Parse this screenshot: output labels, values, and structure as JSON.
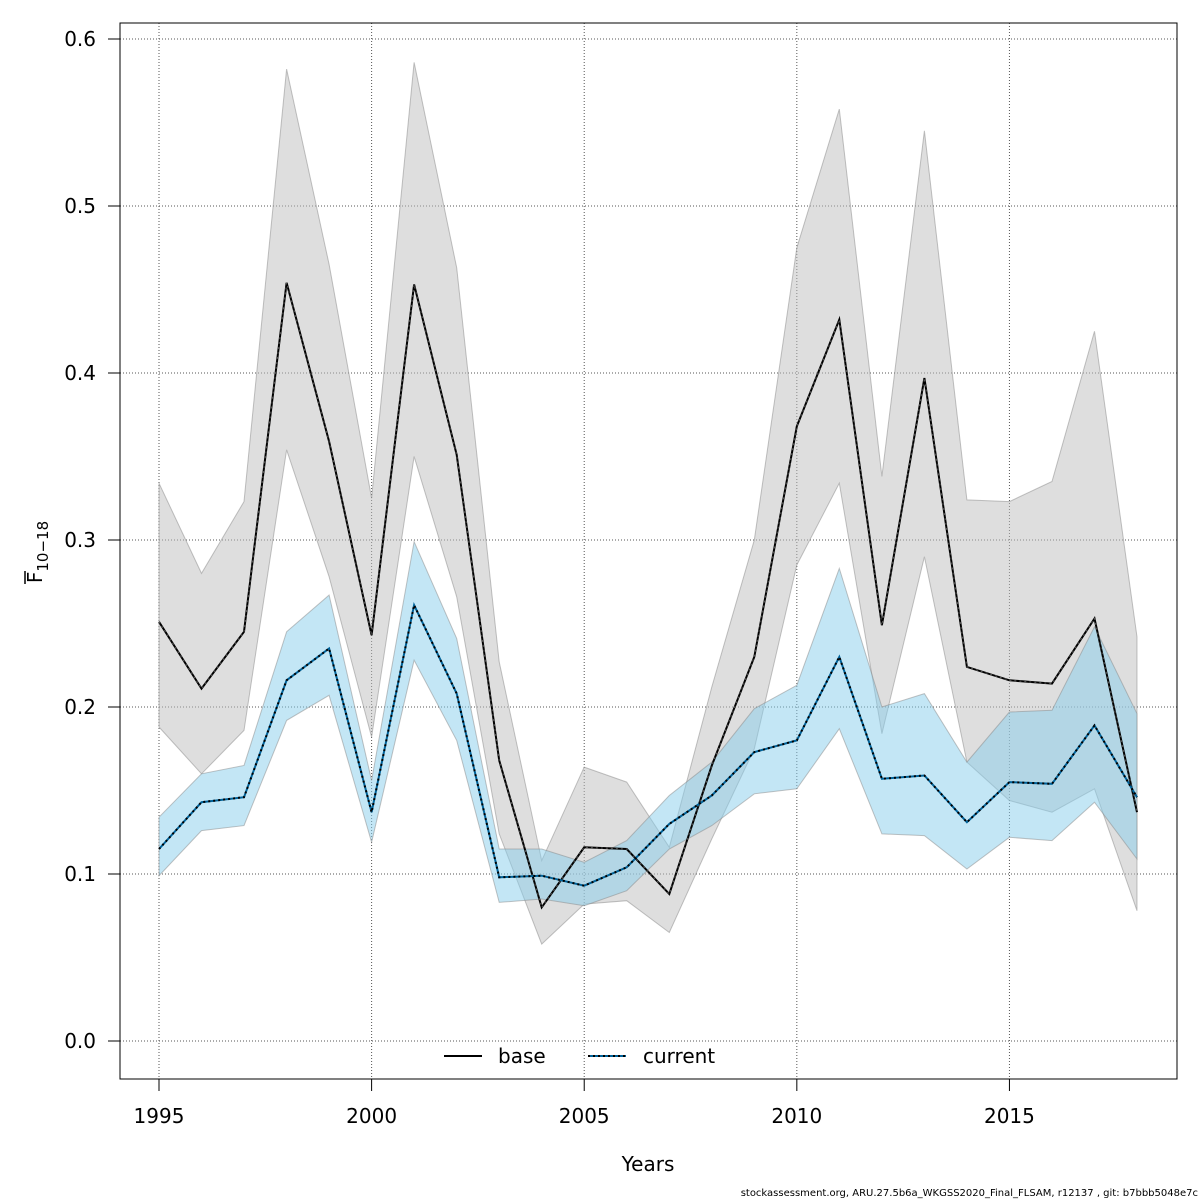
{
  "chart_data": {
    "type": "line",
    "xlabel": "Years",
    "ylabel": {
      "main": "F",
      "sub": "10−18"
    },
    "ylim": [
      0.0,
      0.6
    ],
    "xlim": [
      1995,
      2018
    ],
    "y_ticks": [
      "0.0",
      "0.1",
      "0.2",
      "0.3",
      "0.4",
      "0.5",
      "0.6"
    ],
    "x_ticks": [
      "1995",
      "2000",
      "2005",
      "2010",
      "2015"
    ],
    "grid": true,
    "legend_position": "bottom-center",
    "x": [
      1995,
      1996,
      1997,
      1998,
      1999,
      2000,
      2001,
      2002,
      2003,
      2004,
      2005,
      2006,
      2007,
      2008,
      2009,
      2010,
      2011,
      2012,
      2013,
      2014,
      2015,
      2016,
      2017,
      2018
    ],
    "series": [
      {
        "name": "base",
        "color": "#000000",
        "band_color": "#bebebe",
        "line_style": "solid",
        "values": [
          0.251,
          0.211,
          0.245,
          0.454,
          0.359,
          0.243,
          0.453,
          0.351,
          0.168,
          0.08,
          0.116,
          0.115,
          0.088,
          0.165,
          0.23,
          0.368,
          0.432,
          0.249,
          0.397,
          0.224,
          0.216,
          0.214,
          0.253,
          0.137
        ],
        "upper": [
          0.334,
          0.28,
          0.323,
          0.582,
          0.465,
          0.325,
          0.586,
          0.463,
          0.227,
          0.108,
          0.164,
          0.155,
          0.116,
          0.212,
          0.3,
          0.475,
          0.558,
          0.338,
          0.545,
          0.324,
          0.323,
          0.335,
          0.425,
          0.242
        ],
        "lower": [
          0.188,
          0.16,
          0.186,
          0.354,
          0.278,
          0.182,
          0.35,
          0.266,
          0.124,
          0.058,
          0.082,
          0.084,
          0.065,
          0.121,
          0.175,
          0.285,
          0.334,
          0.184,
          0.29,
          0.167,
          0.144,
          0.137,
          0.151,
          0.078
        ]
      },
      {
        "name": "current",
        "color": "#00639a",
        "band_color": "#87ceeb",
        "line_style": "dotted",
        "values": [
          0.115,
          0.143,
          0.146,
          0.216,
          0.235,
          0.137,
          0.261,
          0.208,
          0.098,
          0.099,
          0.093,
          0.104,
          0.13,
          0.147,
          0.173,
          0.18,
          0.23,
          0.157,
          0.159,
          0.131,
          0.155,
          0.154,
          0.189,
          0.146
        ],
        "upper": [
          0.134,
          0.16,
          0.165,
          0.245,
          0.267,
          0.156,
          0.299,
          0.241,
          0.115,
          0.115,
          0.107,
          0.12,
          0.147,
          0.167,
          0.199,
          0.213,
          0.283,
          0.2,
          0.208,
          0.167,
          0.197,
          0.198,
          0.248,
          0.196
        ],
        "lower": [
          0.099,
          0.126,
          0.129,
          0.192,
          0.207,
          0.119,
          0.228,
          0.18,
          0.083,
          0.085,
          0.081,
          0.09,
          0.115,
          0.129,
          0.148,
          0.151,
          0.187,
          0.124,
          0.123,
          0.103,
          0.122,
          0.12,
          0.143,
          0.109
        ]
      }
    ]
  },
  "footer": "stockassessment.org, ARU.27.5b6a_WKGSS2020_Final_FLSAM, r12137 , git: b7bbb5048e7c"
}
